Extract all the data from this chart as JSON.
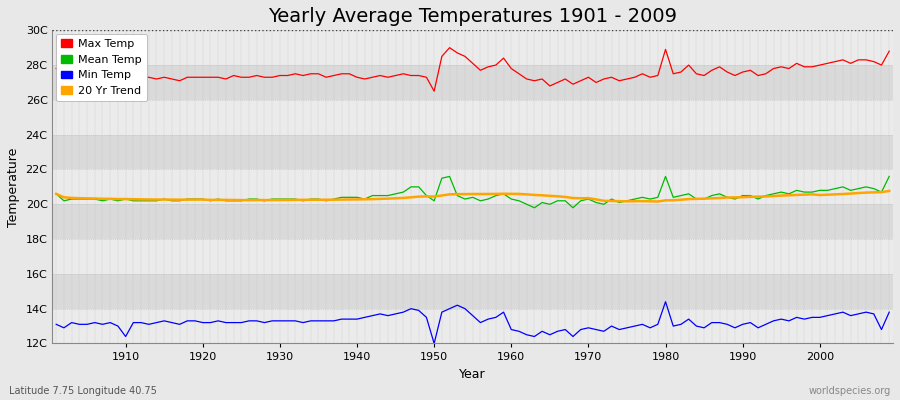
{
  "title": "Yearly Average Temperatures 1901 - 2009",
  "xlabel": "Year",
  "ylabel": "Temperature",
  "footnote_left": "Latitude 7.75 Longitude 40.75",
  "footnote_right": "worldspecies.org",
  "years": [
    1901,
    1902,
    1903,
    1904,
    1905,
    1906,
    1907,
    1908,
    1909,
    1910,
    1911,
    1912,
    1913,
    1914,
    1915,
    1916,
    1917,
    1918,
    1919,
    1920,
    1921,
    1922,
    1923,
    1924,
    1925,
    1926,
    1927,
    1928,
    1929,
    1930,
    1931,
    1932,
    1933,
    1934,
    1935,
    1936,
    1937,
    1938,
    1939,
    1940,
    1941,
    1942,
    1943,
    1944,
    1945,
    1946,
    1947,
    1948,
    1949,
    1950,
    1951,
    1952,
    1953,
    1954,
    1955,
    1956,
    1957,
    1958,
    1959,
    1960,
    1961,
    1962,
    1963,
    1964,
    1965,
    1966,
    1967,
    1968,
    1969,
    1970,
    1971,
    1972,
    1973,
    1974,
    1975,
    1976,
    1977,
    1978,
    1979,
    1980,
    1981,
    1982,
    1983,
    1984,
    1985,
    1986,
    1987,
    1988,
    1989,
    1990,
    1991,
    1992,
    1993,
    1994,
    1995,
    1996,
    1997,
    1998,
    1999,
    2000,
    2001,
    2002,
    2003,
    2004,
    2005,
    2006,
    2007,
    2008,
    2009
  ],
  "max_temp": [
    27.8,
    27.6,
    27.5,
    27.5,
    27.6,
    27.4,
    27.4,
    27.3,
    27.5,
    27.4,
    27.3,
    27.2,
    27.3,
    27.2,
    27.3,
    27.2,
    27.1,
    27.3,
    27.3,
    27.3,
    27.3,
    27.3,
    27.2,
    27.4,
    27.3,
    27.3,
    27.4,
    27.3,
    27.3,
    27.4,
    27.4,
    27.5,
    27.4,
    27.5,
    27.5,
    27.3,
    27.4,
    27.5,
    27.5,
    27.3,
    27.2,
    27.3,
    27.4,
    27.3,
    27.4,
    27.5,
    27.4,
    27.4,
    27.3,
    26.5,
    28.5,
    29.0,
    28.7,
    28.5,
    28.1,
    27.7,
    27.9,
    28.0,
    28.4,
    27.8,
    27.5,
    27.2,
    27.1,
    27.2,
    26.8,
    27.0,
    27.2,
    26.9,
    27.1,
    27.3,
    27.0,
    27.2,
    27.3,
    27.1,
    27.2,
    27.3,
    27.5,
    27.3,
    27.4,
    28.9,
    27.5,
    27.6,
    28.0,
    27.5,
    27.4,
    27.7,
    27.9,
    27.6,
    27.4,
    27.6,
    27.7,
    27.4,
    27.5,
    27.8,
    27.9,
    27.8,
    28.1,
    27.9,
    27.9,
    28.0,
    28.1,
    28.2,
    28.3,
    28.1,
    28.3,
    28.3,
    28.2,
    28.0,
    28.8
  ],
  "mean_temp": [
    20.6,
    20.2,
    20.3,
    20.3,
    20.3,
    20.3,
    20.2,
    20.3,
    20.2,
    20.3,
    20.2,
    20.2,
    20.2,
    20.2,
    20.3,
    20.2,
    20.2,
    20.3,
    20.3,
    20.3,
    20.2,
    20.3,
    20.2,
    20.2,
    20.2,
    20.3,
    20.3,
    20.2,
    20.3,
    20.3,
    20.3,
    20.3,
    20.2,
    20.3,
    20.3,
    20.2,
    20.3,
    20.4,
    20.4,
    20.4,
    20.3,
    20.5,
    20.5,
    20.5,
    20.6,
    20.7,
    21.0,
    21.0,
    20.5,
    20.2,
    21.5,
    21.6,
    20.5,
    20.3,
    20.4,
    20.2,
    20.3,
    20.5,
    20.6,
    20.3,
    20.2,
    20.0,
    19.8,
    20.1,
    20.0,
    20.2,
    20.2,
    19.8,
    20.2,
    20.3,
    20.1,
    20.0,
    20.3,
    20.1,
    20.2,
    20.3,
    20.4,
    20.3,
    20.4,
    21.6,
    20.4,
    20.5,
    20.6,
    20.3,
    20.3,
    20.5,
    20.6,
    20.4,
    20.3,
    20.5,
    20.5,
    20.3,
    20.5,
    20.6,
    20.7,
    20.6,
    20.8,
    20.7,
    20.7,
    20.8,
    20.8,
    20.9,
    21.0,
    20.8,
    20.9,
    21.0,
    20.9,
    20.7,
    21.6
  ],
  "min_temp": [
    13.1,
    12.9,
    13.2,
    13.1,
    13.1,
    13.2,
    13.1,
    13.2,
    13.0,
    12.4,
    13.2,
    13.2,
    13.1,
    13.2,
    13.3,
    13.2,
    13.1,
    13.3,
    13.3,
    13.2,
    13.2,
    13.3,
    13.2,
    13.2,
    13.2,
    13.3,
    13.3,
    13.2,
    13.3,
    13.3,
    13.3,
    13.3,
    13.2,
    13.3,
    13.3,
    13.3,
    13.3,
    13.4,
    13.4,
    13.4,
    13.5,
    13.6,
    13.7,
    13.6,
    13.7,
    13.8,
    14.0,
    13.9,
    13.5,
    12.0,
    13.8,
    14.0,
    14.2,
    14.0,
    13.6,
    13.2,
    13.4,
    13.5,
    13.8,
    12.8,
    12.7,
    12.5,
    12.4,
    12.7,
    12.5,
    12.7,
    12.8,
    12.4,
    12.8,
    12.9,
    12.8,
    12.7,
    13.0,
    12.8,
    12.9,
    13.0,
    13.1,
    12.9,
    13.1,
    14.4,
    13.0,
    13.1,
    13.4,
    13.0,
    12.9,
    13.2,
    13.2,
    13.1,
    12.9,
    13.1,
    13.2,
    12.9,
    13.1,
    13.3,
    13.4,
    13.3,
    13.5,
    13.4,
    13.5,
    13.5,
    13.6,
    13.7,
    13.8,
    13.6,
    13.7,
    13.8,
    13.7,
    12.8,
    13.8
  ],
  "trend_color": "#FFA500",
  "max_color": "#FF0000",
  "mean_color": "#00BB00",
  "min_color": "#0000FF",
  "bg_color": "#E8E8E8",
  "plot_bg_color": "#E0E0E0",
  "band_color_light": "#EBEBEB",
  "band_color_dark": "#DADADA",
  "grid_color": "#CCCCCC",
  "ylim": [
    12,
    30
  ],
  "yticks": [
    12,
    14,
    16,
    18,
    20,
    22,
    24,
    26,
    28,
    30
  ],
  "ytick_labels": [
    "12C",
    "14C",
    "16C",
    "18C",
    "20C",
    "22C",
    "24C",
    "26C",
    "28C",
    "30C"
  ],
  "dotted_line_y": 30,
  "title_fontsize": 14,
  "axis_fontsize": 9,
  "tick_fontsize": 8,
  "legend_square_colors": [
    "#FF0000",
    "#00BB00",
    "#0000FF",
    "#FFA500"
  ],
  "legend_labels": [
    "Max Temp",
    "Mean Temp",
    "Min Temp",
    "20 Yr Trend"
  ]
}
